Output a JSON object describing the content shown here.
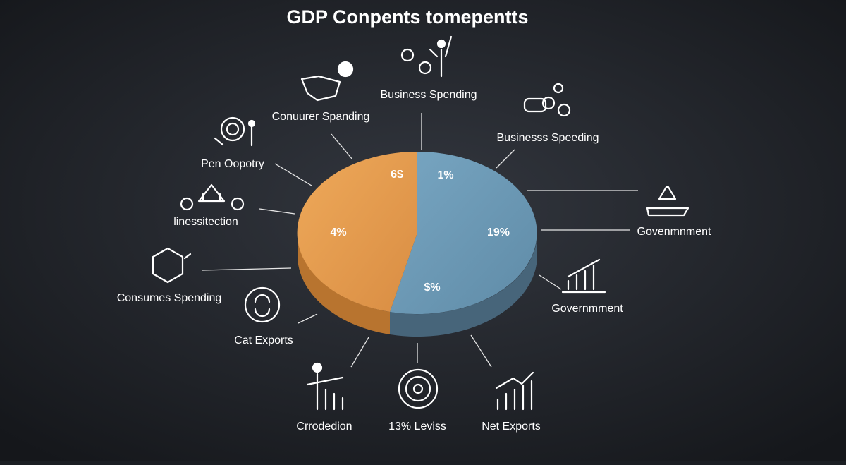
{
  "title": "GDP Conpents tomepentts",
  "pie": {
    "labels": [
      "6$",
      "1%",
      "4%",
      "19%",
      "$%"
    ]
  },
  "callouts": [
    {
      "label": "Business Spending"
    },
    {
      "label": "Conuurer Spanding"
    },
    {
      "label": "Businesss Speeding"
    },
    {
      "label": "Pen Oopotry"
    },
    {
      "label": "linessitection"
    },
    {
      "label": "Govenmnment"
    },
    {
      "label": "Consumes Spending"
    },
    {
      "label": "Governmment"
    },
    {
      "label": "Cat Exports"
    },
    {
      "label": "Crrodedion"
    },
    {
      "label": "13% Leviss"
    },
    {
      "label": "Net Exports"
    }
  ]
}
